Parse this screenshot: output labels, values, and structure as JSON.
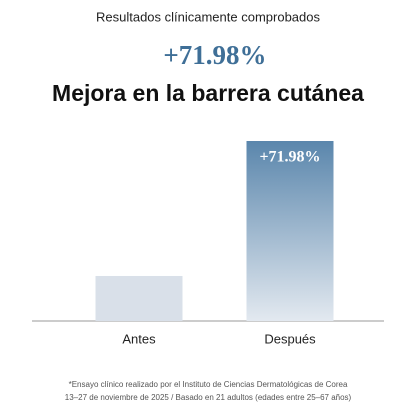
{
  "chart_data": {
    "type": "bar",
    "subtitle": "Resultados clínicamente comprobados",
    "highlight": "+71.98%",
    "title": "Mejora en la barrera cutánea",
    "categories": [
      "Antes",
      "Después"
    ],
    "values": [
      18,
      71.98
    ],
    "value_labels": [
      null,
      "+71.98%"
    ],
    "colors": [
      "#d9e0e9",
      "#5a86ac"
    ],
    "footnote": [
      "*Ensayo clínico realizado por el Instituto de Ciencias Dermatológicas de Corea",
      "13–27 de noviembre de 2025 / Basado en 21 adultos (edades entre 25–67 años)"
    ]
  }
}
